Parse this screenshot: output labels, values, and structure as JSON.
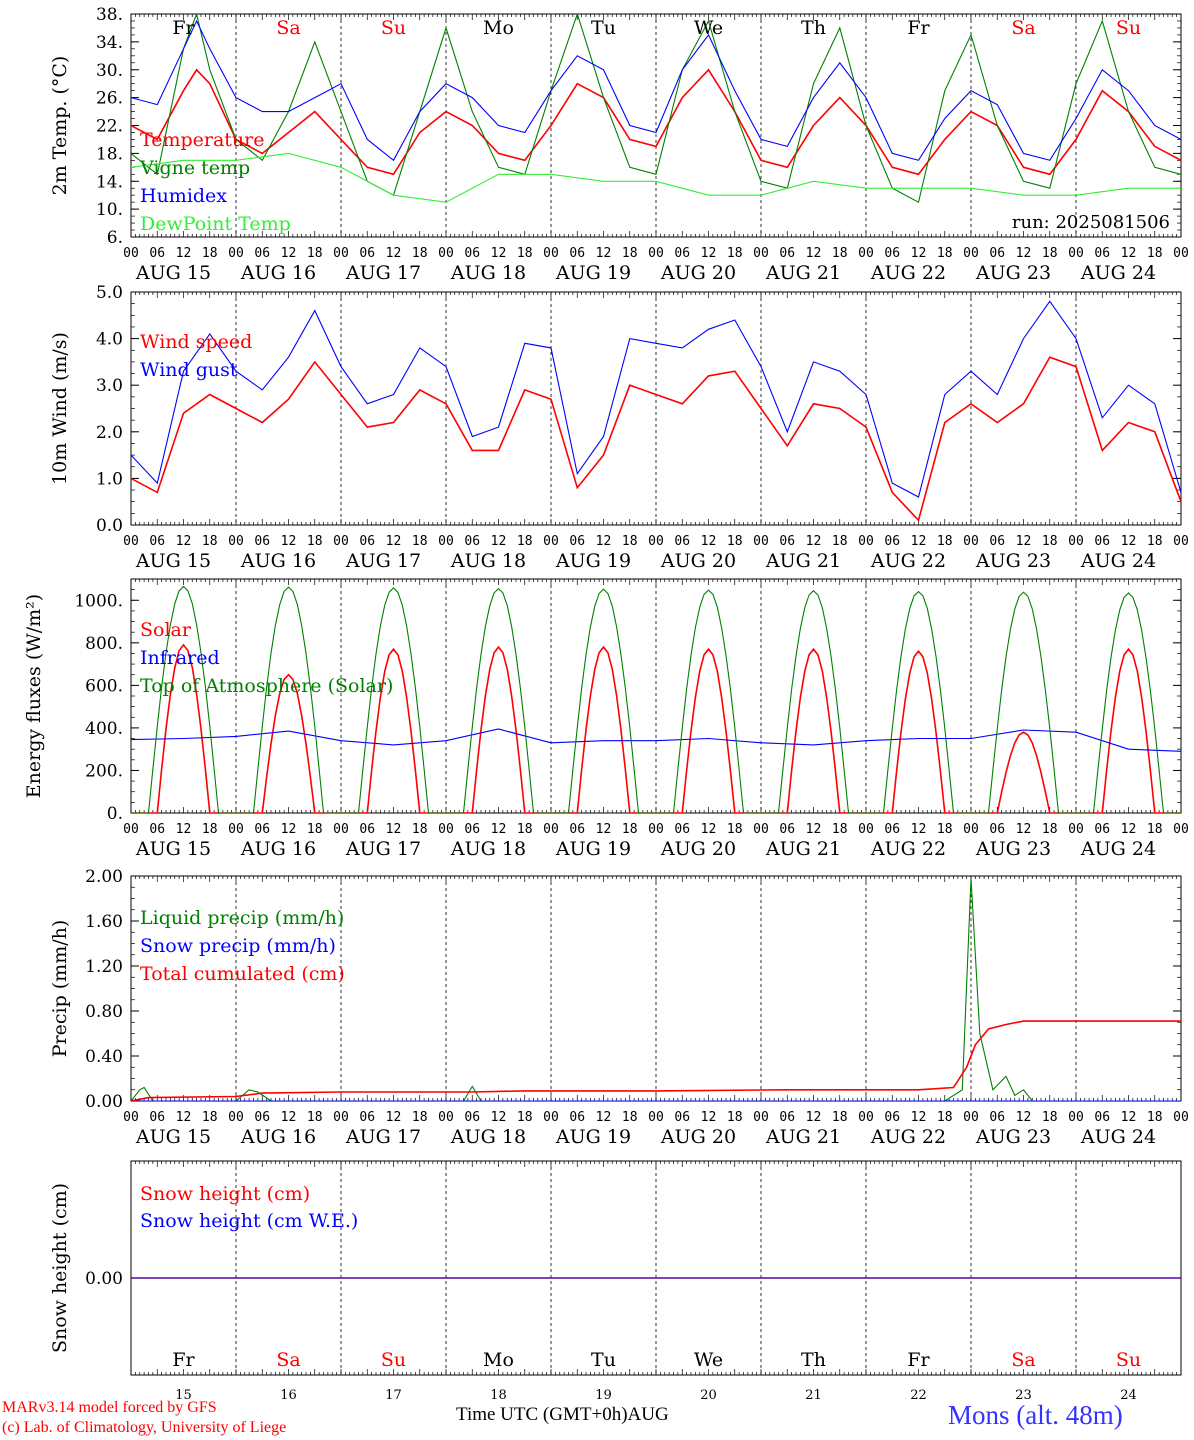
{
  "meta": {
    "run_label": "run: 2025081506"
  },
  "days": {
    "abbr": [
      "Fr",
      "Sa",
      "Su",
      "Mo",
      "Tu",
      "We",
      "Th",
      "Fr",
      "Sa",
      "Su"
    ],
    "dates": [
      "AUG 15",
      "AUG 16",
      "AUG 17",
      "AUG 18",
      "AUG 19",
      "AUG 20",
      "AUG 21",
      "AUG 22",
      "AUG 23",
      "AUG 24"
    ],
    "nums": [
      "15",
      "16",
      "17",
      "18",
      "19",
      "20",
      "21",
      "22",
      "23",
      "24"
    ],
    "hours": [
      "00",
      "06",
      "12",
      "18"
    ],
    "weekend_color": "#ff0000"
  },
  "footer": {
    "credit_line1": "MARv3.14 model forced by GFS",
    "credit_line2": "(c) Lab. of Climatology, University of Liege",
    "xaxis_title": "Time UTC (GMT+0h)",
    "month": "AUG",
    "location": "Mons (alt. 48m)"
  },
  "chart_data": [
    {
      "type": "line",
      "ylabel": "2m Temp. (°C)",
      "ylim": [
        6,
        38
      ],
      "yticks": [
        "6.",
        "10.",
        "14.",
        "18.",
        "22.",
        "26.",
        "30.",
        "34.",
        "38."
      ],
      "x_unit": "hours since AUG 15 00 UTC",
      "series": [
        {
          "name": "Temperature",
          "color": "#ff0000",
          "x": [
            0,
            6,
            12,
            15,
            18,
            24,
            30,
            36,
            42,
            48,
            54,
            60,
            66,
            72,
            78,
            84,
            90,
            96,
            102,
            108,
            114,
            120,
            126,
            132,
            138,
            144,
            150,
            156,
            162,
            168,
            174,
            180,
            186,
            192,
            198,
            204,
            210,
            216,
            222,
            228,
            234,
            240
          ],
          "y": [
            22,
            20,
            27,
            30,
            28,
            20,
            18,
            21,
            24,
            20,
            16,
            15,
            21,
            24,
            22,
            18,
            17,
            22,
            28,
            26,
            20,
            19,
            26,
            30,
            24,
            17,
            16,
            22,
            26,
            22,
            16,
            15,
            20,
            24,
            22,
            16,
            15,
            20,
            27,
            24,
            19,
            17
          ]
        },
        {
          "name": "Vigne temp",
          "color": "#008000",
          "x": [
            0,
            6,
            12,
            15,
            18,
            24,
            30,
            36,
            42,
            48,
            54,
            60,
            66,
            72,
            78,
            84,
            90,
            96,
            102,
            108,
            114,
            120,
            126,
            132,
            138,
            144,
            150,
            156,
            162,
            168,
            174,
            180,
            186,
            192,
            198,
            204,
            210,
            216,
            222,
            228,
            234,
            240
          ],
          "y": [
            18,
            15,
            33,
            38,
            30,
            20,
            17,
            24,
            34,
            24,
            14,
            12,
            24,
            36,
            24,
            16,
            15,
            27,
            38,
            26,
            16,
            15,
            30,
            37,
            24,
            14,
            13,
            28,
            36,
            22,
            13,
            11,
            27,
            35,
            22,
            14,
            13,
            28,
            37,
            24,
            16,
            15
          ]
        },
        {
          "name": "Humidex",
          "color": "#0000ff",
          "x": [
            0,
            6,
            12,
            15,
            18,
            24,
            30,
            36,
            42,
            48,
            54,
            60,
            66,
            72,
            78,
            84,
            90,
            96,
            102,
            108,
            114,
            120,
            126,
            132,
            138,
            144,
            150,
            156,
            162,
            168,
            174,
            180,
            186,
            192,
            198,
            204,
            210,
            216,
            222,
            228,
            234,
            240
          ],
          "y": [
            26,
            25,
            33,
            37,
            33,
            26,
            24,
            24,
            26,
            28,
            20,
            17,
            24,
            28,
            26,
            22,
            21,
            27,
            32,
            30,
            22,
            21,
            30,
            35,
            27,
            20,
            19,
            26,
            31,
            26,
            18,
            17,
            23,
            27,
            25,
            18,
            17,
            23,
            30,
            27,
            22,
            20
          ]
        },
        {
          "name": "DewPoint Temp",
          "color": "#33ee33",
          "x": [
            0,
            12,
            24,
            36,
            48,
            60,
            72,
            84,
            96,
            108,
            120,
            132,
            144,
            156,
            168,
            180,
            192,
            204,
            216,
            228,
            240
          ],
          "y": [
            16,
            17,
            17,
            18,
            16,
            12,
            11,
            15,
            15,
            14,
            14,
            12,
            12,
            14,
            13,
            13,
            13,
            12,
            12,
            13,
            13
          ]
        }
      ]
    },
    {
      "type": "line",
      "ylabel": "10m Wind (m/s)",
      "ylim": [
        0,
        5
      ],
      "yticks": [
        "0.0",
        "1.0",
        "2.0",
        "3.0",
        "4.0",
        "5.0"
      ],
      "x_unit": "hours since AUG 15 00 UTC",
      "series": [
        {
          "name": "Wind speed",
          "color": "#ff0000",
          "x": [
            0,
            6,
            12,
            18,
            24,
            30,
            36,
            42,
            48,
            54,
            60,
            66,
            72,
            78,
            84,
            90,
            96,
            102,
            108,
            114,
            120,
            126,
            132,
            138,
            144,
            150,
            156,
            162,
            168,
            174,
            180,
            186,
            192,
            198,
            204,
            210,
            216,
            222,
            228,
            234,
            240
          ],
          "y": [
            1.0,
            0.7,
            2.4,
            2.8,
            2.5,
            2.2,
            2.7,
            3.5,
            2.8,
            2.1,
            2.2,
            2.9,
            2.6,
            1.6,
            1.6,
            2.9,
            2.7,
            0.8,
            1.5,
            3.0,
            2.8,
            2.6,
            3.2,
            3.3,
            2.5,
            1.7,
            2.6,
            2.5,
            2.1,
            0.7,
            0.1,
            2.2,
            2.6,
            2.2,
            2.6,
            3.6,
            3.4,
            1.6,
            2.2,
            2.0,
            0.5
          ]
        },
        {
          "name": "Wind gust",
          "color": "#0000ff",
          "x": [
            0,
            6,
            12,
            18,
            24,
            30,
            36,
            42,
            48,
            54,
            60,
            66,
            72,
            78,
            84,
            90,
            96,
            102,
            108,
            114,
            120,
            126,
            132,
            138,
            144,
            150,
            156,
            162,
            168,
            174,
            180,
            186,
            192,
            198,
            204,
            210,
            216,
            222,
            228,
            234,
            240
          ],
          "y": [
            1.5,
            0.9,
            3.3,
            4.1,
            3.3,
            2.9,
            3.6,
            4.6,
            3.4,
            2.6,
            2.8,
            3.8,
            3.4,
            1.9,
            2.1,
            3.9,
            3.8,
            1.1,
            1.9,
            4.0,
            3.9,
            3.8,
            4.2,
            4.4,
            3.4,
            2.0,
            3.5,
            3.3,
            2.8,
            0.9,
            0.6,
            2.8,
            3.3,
            2.8,
            4.0,
            4.8,
            4.0,
            2.3,
            3.0,
            2.6,
            0.7
          ]
        }
      ]
    },
    {
      "type": "line",
      "ylabel": "Energy fluxes (W/m²)",
      "ylim": [
        0,
        1100
      ],
      "yticks": [
        "0.",
        "200.",
        "400.",
        "600.",
        "800.",
        "1000."
      ],
      "x_unit": "hours since AUG 15 00 UTC",
      "series": [
        {
          "name": "Solar",
          "color": "#ff0000",
          "daily_peak": [
            790,
            650,
            770,
            780,
            780,
            770,
            770,
            760,
            380,
            770
          ]
        },
        {
          "name": "Infrared",
          "color": "#0000ff",
          "x": [
            0,
            12,
            24,
            36,
            48,
            60,
            72,
            84,
            96,
            108,
            120,
            132,
            144,
            156,
            168,
            180,
            192,
            204,
            216,
            228,
            240
          ],
          "y": [
            345,
            350,
            360,
            385,
            340,
            320,
            340,
            395,
            330,
            340,
            340,
            350,
            330,
            320,
            340,
            350,
            350,
            390,
            380,
            300,
            290
          ]
        },
        {
          "name": "Top of Atmosphere (Solar)",
          "color": "#008000",
          "daily_peak": [
            1065,
            1062,
            1058,
            1055,
            1052,
            1048,
            1045,
            1041,
            1038,
            1034
          ]
        }
      ]
    },
    {
      "type": "line",
      "ylabel": "Precip (mm/h)",
      "ylim": [
        0,
        2
      ],
      "yticks": [
        "0.00",
        "0.40",
        "0.80",
        "1.20",
        "1.60",
        "2.00"
      ],
      "x_unit": "hours since AUG 15 00 UTC",
      "series": [
        {
          "name": "Liquid precip (mm/h)",
          "color": "#008000",
          "x": [
            0,
            2,
            3,
            5,
            24,
            27,
            29,
            32,
            76,
            78,
            80,
            186,
            190,
            192,
            194,
            197,
            200,
            202,
            204,
            206,
            208,
            210,
            240
          ],
          "y": [
            0,
            0.1,
            0.12,
            0,
            0,
            0.1,
            0.08,
            0,
            0,
            0.13,
            0,
            0,
            0.1,
            1.98,
            0.6,
            0.1,
            0.22,
            0.05,
            0.1,
            0,
            0,
            0,
            0
          ]
        },
        {
          "name": "Snow precip (mm/h)",
          "color": "#0000ff",
          "x": [
            0,
            240
          ],
          "y": [
            0,
            0
          ]
        },
        {
          "name": "Total cumulated (cm)",
          "color": "#ff0000",
          "x": [
            0,
            4,
            24,
            30,
            48,
            78,
            90,
            120,
            150,
            180,
            188,
            191,
            193,
            196,
            200,
            204,
            208,
            240
          ],
          "y": [
            0,
            0.03,
            0.04,
            0.07,
            0.08,
            0.08,
            0.09,
            0.09,
            0.1,
            0.1,
            0.12,
            0.3,
            0.5,
            0.64,
            0.68,
            0.71,
            0.71,
            0.71
          ]
        }
      ]
    },
    {
      "type": "line",
      "ylabel": "Snow height (cm)",
      "yticks": [
        "0.00"
      ],
      "x_unit": "hours since AUG 15 00 UTC",
      "series": [
        {
          "name": "Snow height (cm)",
          "color": "#ff0000",
          "x": [
            0,
            240
          ],
          "y": [
            0,
            0
          ]
        },
        {
          "name": "Snow height (cm W.E.)",
          "color": "#0000ff",
          "x": [
            0,
            240
          ],
          "y": [
            0,
            0
          ]
        }
      ]
    }
  ]
}
